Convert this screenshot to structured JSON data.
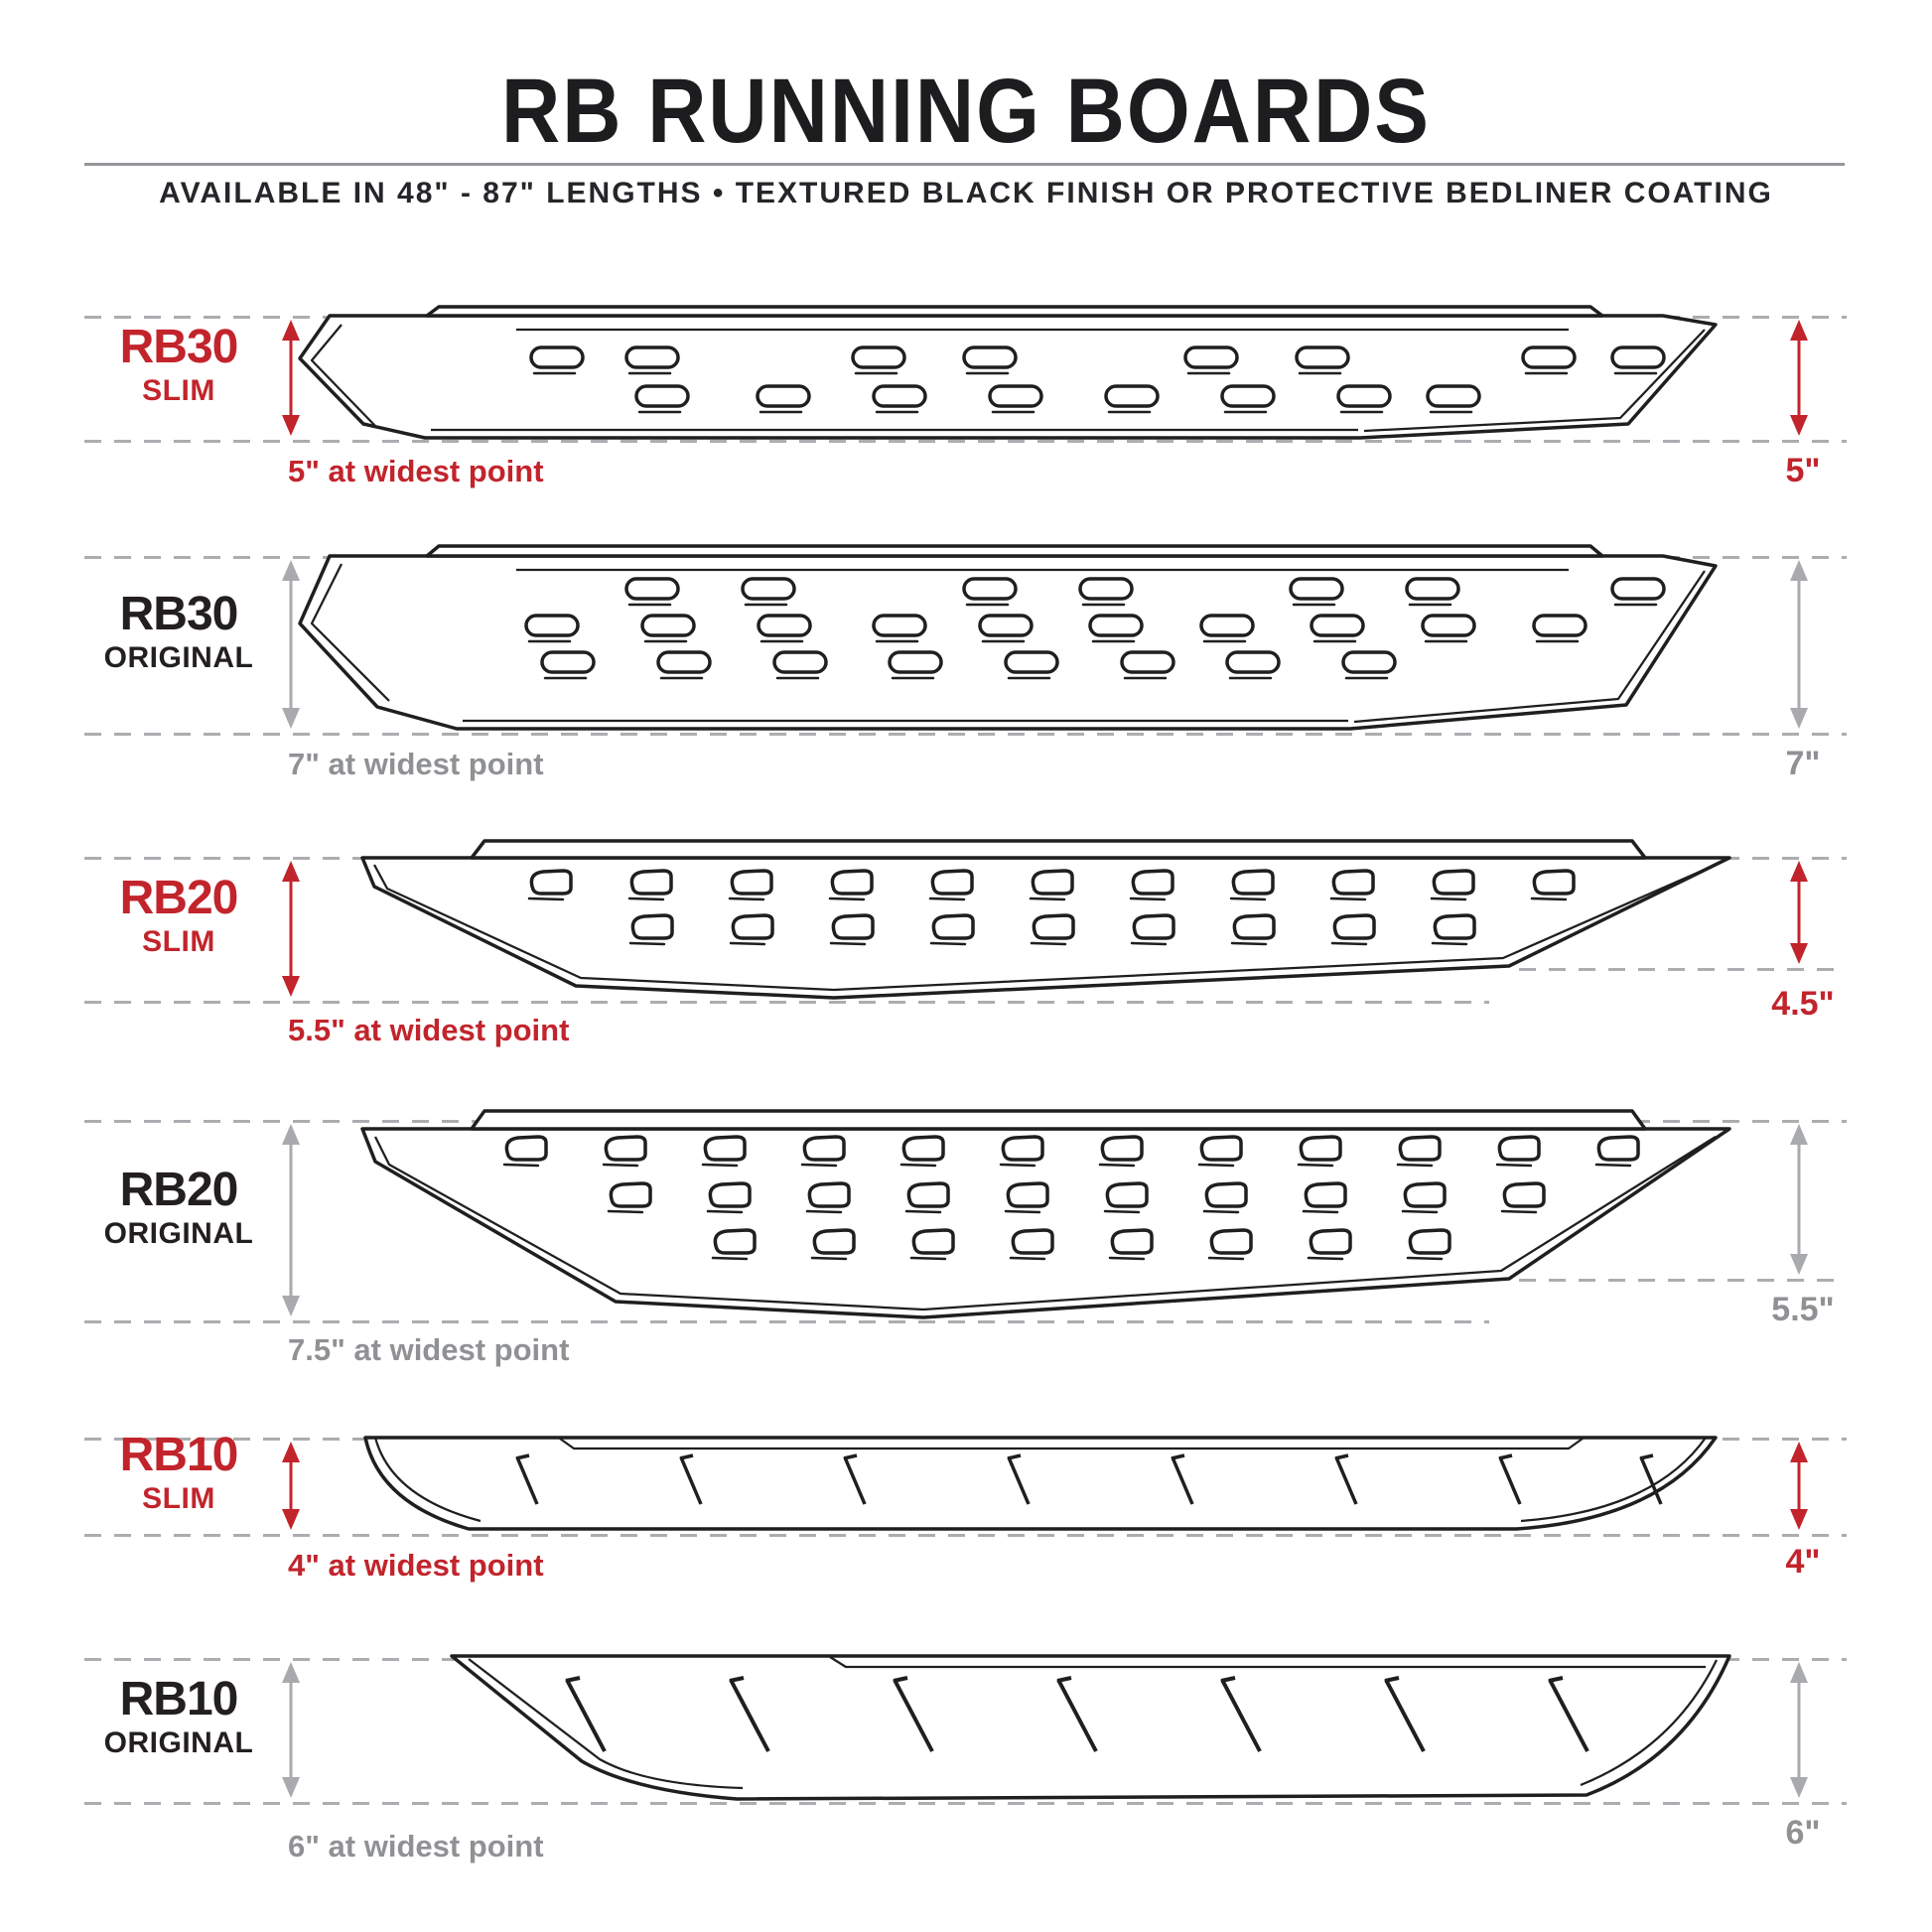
{
  "header": {
    "title": "RB RUNNING BOARDS",
    "subtitle": "AVAILABLE IN 48\" - 87\" LENGTHS   •   TEXTURED BLACK FINISH OR PROTECTIVE BEDLINER COATING"
  },
  "colors": {
    "accent_red": "#C2242C",
    "line_gray": "#A8AAAD",
    "text_gray": "#8F9194",
    "ink": "#231F20"
  },
  "boards": [
    {
      "name": "RB30",
      "variant": "SLIM",
      "width_note": "5\" at widest point",
      "height_right": "5\""
    },
    {
      "name": "RB30",
      "variant": "ORIGINAL",
      "width_note": "7\" at widest point",
      "height_right": "7\""
    },
    {
      "name": "RB20",
      "variant": "SLIM",
      "width_note": "5.5\" at widest point",
      "height_right": "4.5\""
    },
    {
      "name": "RB20",
      "variant": "ORIGINAL",
      "width_note": "7.5\" at widest point",
      "height_right": "5.5\""
    },
    {
      "name": "RB10",
      "variant": "SLIM",
      "width_note": "4\" at widest point",
      "height_right": "4\""
    },
    {
      "name": "RB10",
      "variant": "ORIGINAL",
      "width_note": "6\" at widest point",
      "height_right": "6\""
    }
  ]
}
